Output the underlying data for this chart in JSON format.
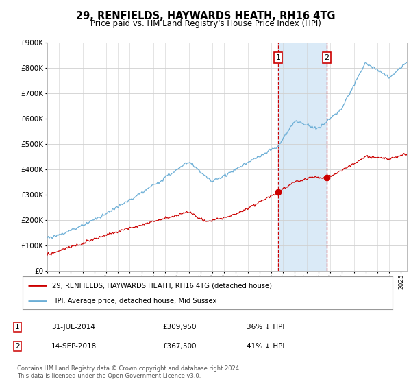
{
  "title": "29, RENFIELDS, HAYWARDS HEATH, RH16 4TG",
  "subtitle": "Price paid vs. HM Land Registry's House Price Index (HPI)",
  "legend_line1": "29, RENFIELDS, HAYWARDS HEATH, RH16 4TG (detached house)",
  "legend_line2": "HPI: Average price, detached house, Mid Sussex",
  "footnote": "Contains HM Land Registry data © Crown copyright and database right 2024.\nThis data is licensed under the Open Government Licence v3.0.",
  "marker1_date": "31-JUL-2014",
  "marker1_price": "£309,950",
  "marker1_hpi": "36% ↓ HPI",
  "marker2_date": "14-SEP-2018",
  "marker2_price": "£367,500",
  "marker2_hpi": "41% ↓ HPI",
  "ylim": [
    0,
    900000
  ],
  "yticks": [
    0,
    100000,
    200000,
    300000,
    400000,
    500000,
    600000,
    700000,
    800000,
    900000
  ],
  "hpi_color": "#6baed6",
  "property_color": "#cc0000",
  "background_color": "#ffffff",
  "plot_bg_color": "#ffffff",
  "grid_color": "#d0d0d0",
  "marker1_x_year": 2014.58,
  "marker2_x_year": 2018.71,
  "marker1_y": 309950,
  "marker2_y": 367500,
  "shade_color": "#daeaf7",
  "xlim_start": 1995,
  "xlim_end": 2025.5
}
